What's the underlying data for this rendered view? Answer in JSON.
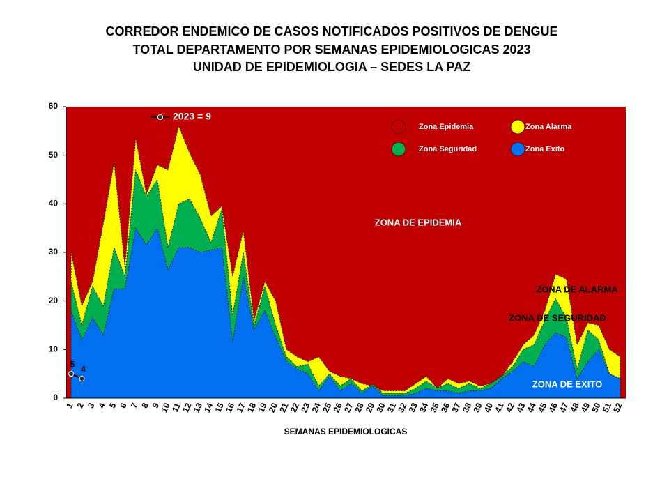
{
  "chart_data": {
    "type": "area",
    "title": [
      "CORREDOR ENDEMICO DE CASOS NOTIFICADOS POSITIVOS DE DENGUE",
      "TOTAL DEPARTAMENTO POR SEMANAS EPIDEMIOLOGICAS 2023",
      "UNIDAD DE EPIDEMIOLOGIA – SEDES LA PAZ"
    ],
    "xlabel": "SEMANAS EPIDEMIOLOGICAS",
    "categories": [
      "1",
      "2",
      "3",
      "4",
      "5",
      "6",
      "7",
      "8",
      "9",
      "10",
      "11",
      "12",
      "13",
      "14",
      "15",
      "16",
      "17",
      "18",
      "19",
      "20",
      "21",
      "22",
      "23",
      "24",
      "25",
      "26",
      "27",
      "28",
      "29",
      "30",
      "31",
      "32",
      "33",
      "34",
      "35",
      "36",
      "37",
      "38",
      "39",
      "40",
      "41",
      "42",
      "43",
      "44",
      "45",
      "46",
      "47",
      "48",
      "49",
      "50",
      "51",
      "52"
    ],
    "ylim": [
      0,
      60
    ],
    "yticks": [
      0,
      10,
      20,
      30,
      40,
      50,
      60
    ],
    "epidemic_zone": {
      "name": "Zona Epidemia",
      "color": "#c00000"
    },
    "series": [
      {
        "name": "Zona Alarma",
        "color": "#ffff00",
        "values": [
          30,
          19,
          24,
          36,
          48.5,
          27,
          53.5,
          42,
          48,
          47,
          56,
          50.5,
          46,
          37.5,
          39.5,
          25,
          34.5,
          16,
          24,
          20,
          10,
          8.5,
          7.5,
          8.5,
          5.5,
          4.5,
          4,
          3,
          2.5,
          1.5,
          1.5,
          1.5,
          3,
          4.5,
          2,
          4,
          3,
          3.5,
          2.5,
          3,
          4.5,
          7.5,
          11,
          13,
          18,
          25.5,
          24.5,
          11,
          15.5,
          15,
          10,
          8.5
        ]
      },
      {
        "name": "Zona Seguridad",
        "color": "#00b050",
        "values": [
          24,
          15,
          23,
          19,
          31,
          25,
          47,
          41.5,
          45,
          31,
          40,
          41,
          37,
          32,
          39,
          17,
          30,
          15,
          23,
          15,
          8.5,
          6.5,
          7,
          2.5,
          5,
          2.5,
          4,
          1.5,
          2.8,
          1,
          1,
          1,
          2,
          3.5,
          2,
          3,
          2,
          3,
          2,
          3,
          4.5,
          6.5,
          10,
          11,
          16,
          20.5,
          16.5,
          6,
          14,
          12,
          5,
          4
        ]
      },
      {
        "name": "Zona Exito",
        "color": "#0070f0",
        "values": [
          18,
          12,
          16.5,
          13,
          22.5,
          22.5,
          35,
          31.5,
          35,
          26.5,
          31,
          31,
          30,
          30.5,
          31,
          11.5,
          25,
          14,
          18,
          12.5,
          7.5,
          6,
          5,
          1.5,
          4.5,
          1.5,
          3,
          1,
          2.5,
          0.5,
          0.5,
          0.5,
          1,
          2,
          1.5,
          1.5,
          1,
          1.5,
          1.5,
          2,
          4,
          5.5,
          7.5,
          6.5,
          11,
          13.5,
          12.5,
          4,
          7.5,
          10,
          5,
          4
        ]
      }
    ],
    "line": {
      "name": "2023 = 9",
      "color": "#000000",
      "values": [
        5,
        4,
        null,
        null,
        null,
        null,
        null,
        null,
        null,
        null,
        null,
        null,
        null,
        null,
        null,
        null,
        null,
        null,
        null,
        null,
        null,
        null,
        null,
        null,
        null,
        null,
        null,
        null,
        null,
        null,
        null,
        null,
        null,
        null,
        null,
        null,
        null,
        null,
        null,
        null,
        null,
        null,
        null,
        null,
        null,
        null,
        null,
        null,
        null,
        null,
        null,
        null
      ]
    },
    "annotations": [
      "ZONA DE EPIDEMIA",
      "ZONA DE ALARMA",
      "ZONA DE  SEGURIDAD",
      "ZONA DE  EXITO"
    ]
  }
}
